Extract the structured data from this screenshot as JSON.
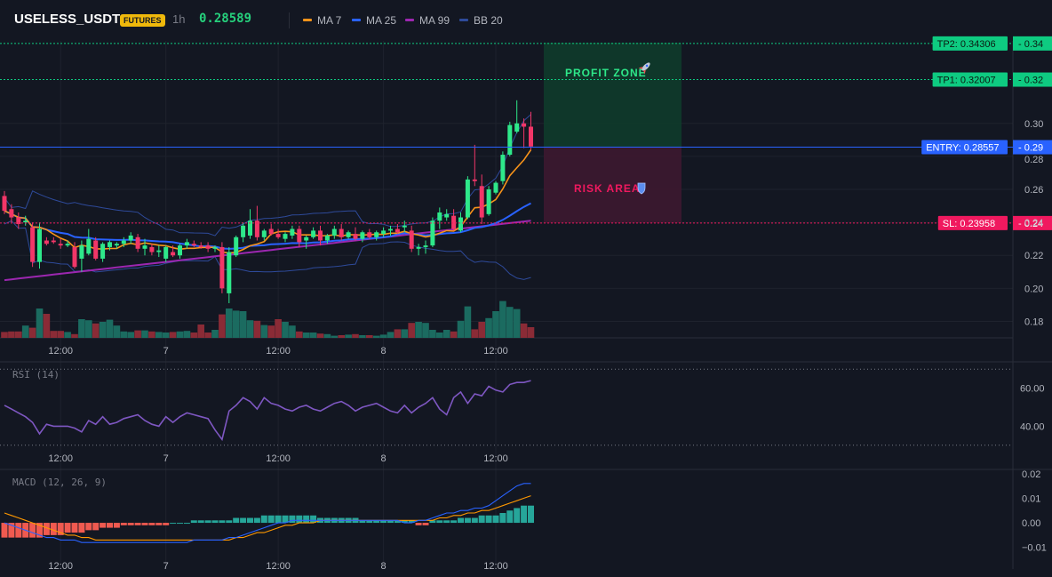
{
  "header": {
    "symbol": "USELESS_USDT",
    "badge": "FUTURES",
    "interval": "1h",
    "last_price": "0.28589",
    "legend": [
      {
        "label": "MA 7",
        "color": "#f7931a"
      },
      {
        "label": "MA 25",
        "color": "#2962ff"
      },
      {
        "label": "MA 99",
        "color": "#9c27b0"
      },
      {
        "label": "BB 20",
        "color": "#2e4a9a"
      }
    ]
  },
  "colors": {
    "up": "#26a69a",
    "down": "#ef5350",
    "up_bright": "#2ee88a",
    "down_bright": "#f23668",
    "tp": "#0ecb81",
    "entry": "#2962ff",
    "sl": "#f0195f"
  },
  "zones": {
    "profit_label": "PROFIT ZONE",
    "profit_icon": "rocket-icon",
    "risk_label": "RISK AREA",
    "risk_icon": "shield-icon"
  },
  "levels": [
    {
      "id": "tp2",
      "label": "TP2: 0.34306",
      "axis_label": "0.34",
      "price": 0.34306
    },
    {
      "id": "tp1",
      "label": "TP1: 0.32007",
      "axis_label": "0.32",
      "price": 0.32007
    },
    {
      "id": "entry",
      "label": "ENTRY: 0.28557",
      "axis_label": "0.29",
      "price": 0.28557
    },
    {
      "id": "sl",
      "label": "SL: 0.23958",
      "axis_label": "0.24",
      "price": 0.23958
    }
  ],
  "panes": {
    "rsi_label": "RSI (14)",
    "macd_label": "MACD (12, 26, 9)"
  },
  "chart_data": {
    "type": "candlestick",
    "price_axis": {
      "ticks": [
        0.18,
        0.2,
        0.22,
        0.24,
        0.26,
        0.28,
        0.3
      ],
      "tick_labels": [
        "0.18",
        "0.20",
        "0.22",
        "0.24",
        "0.26",
        "0.28",
        "0.30"
      ],
      "range": [
        0.17,
        0.35
      ]
    },
    "time_ticks": [
      {
        "label": "12:00",
        "index": 8
      },
      {
        "label": "7",
        "index": 23
      },
      {
        "label": "12:00",
        "index": 39
      },
      {
        "label": "8",
        "index": 54
      },
      {
        "label": "12:00",
        "index": 70
      }
    ],
    "candles": [
      {
        "o": 0.256,
        "h": 0.259,
        "l": 0.245,
        "c": 0.247
      },
      {
        "o": 0.248,
        "h": 0.251,
        "l": 0.24,
        "c": 0.243
      },
      {
        "o": 0.243,
        "h": 0.246,
        "l": 0.236,
        "c": 0.239
      },
      {
        "o": 0.24,
        "h": 0.244,
        "l": 0.238,
        "c": 0.241
      },
      {
        "o": 0.237,
        "h": 0.24,
        "l": 0.213,
        "c": 0.216
      },
      {
        "o": 0.216,
        "h": 0.24,
        "l": 0.212,
        "c": 0.236
      },
      {
        "o": 0.229,
        "h": 0.231,
        "l": 0.226,
        "c": 0.227
      },
      {
        "o": 0.229,
        "h": 0.231,
        "l": 0.227,
        "c": 0.228
      },
      {
        "o": 0.227,
        "h": 0.23,
        "l": 0.224,
        "c": 0.226
      },
      {
        "o": 0.226,
        "h": 0.229,
        "l": 0.225,
        "c": 0.227
      },
      {
        "o": 0.225,
        "h": 0.228,
        "l": 0.212,
        "c": 0.213
      },
      {
        "o": 0.218,
        "h": 0.229,
        "l": 0.21,
        "c": 0.226
      },
      {
        "o": 0.221,
        "h": 0.236,
        "l": 0.22,
        "c": 0.23
      },
      {
        "o": 0.229,
        "h": 0.231,
        "l": 0.217,
        "c": 0.218
      },
      {
        "o": 0.218,
        "h": 0.228,
        "l": 0.216,
        "c": 0.227
      },
      {
        "o": 0.225,
        "h": 0.229,
        "l": 0.223,
        "c": 0.228
      },
      {
        "o": 0.226,
        "h": 0.228,
        "l": 0.224,
        "c": 0.227
      },
      {
        "o": 0.227,
        "h": 0.231,
        "l": 0.225,
        "c": 0.229
      },
      {
        "o": 0.229,
        "h": 0.234,
        "l": 0.227,
        "c": 0.232
      },
      {
        "o": 0.231,
        "h": 0.233,
        "l": 0.222,
        "c": 0.224
      },
      {
        "o": 0.224,
        "h": 0.23,
        "l": 0.22,
        "c": 0.226
      },
      {
        "o": 0.225,
        "h": 0.227,
        "l": 0.22,
        "c": 0.222
      },
      {
        "o": 0.222,
        "h": 0.226,
        "l": 0.219,
        "c": 0.223
      },
      {
        "o": 0.218,
        "h": 0.226,
        "l": 0.216,
        "c": 0.225
      },
      {
        "o": 0.222,
        "h": 0.226,
        "l": 0.219,
        "c": 0.22
      },
      {
        "o": 0.22,
        "h": 0.227,
        "l": 0.218,
        "c": 0.226
      },
      {
        "o": 0.226,
        "h": 0.23,
        "l": 0.224,
        "c": 0.228
      },
      {
        "o": 0.227,
        "h": 0.229,
        "l": 0.225,
        "c": 0.226
      },
      {
        "o": 0.226,
        "h": 0.228,
        "l": 0.224,
        "c": 0.225
      },
      {
        "o": 0.226,
        "h": 0.228,
        "l": 0.222,
        "c": 0.224
      },
      {
        "o": 0.224,
        "h": 0.226,
        "l": 0.222,
        "c": 0.225
      },
      {
        "o": 0.225,
        "h": 0.228,
        "l": 0.197,
        "c": 0.2
      },
      {
        "o": 0.197,
        "h": 0.225,
        "l": 0.191,
        "c": 0.222
      },
      {
        "o": 0.22,
        "h": 0.232,
        "l": 0.219,
        "c": 0.231
      },
      {
        "o": 0.231,
        "h": 0.24,
        "l": 0.228,
        "c": 0.238
      },
      {
        "o": 0.232,
        "h": 0.248,
        "l": 0.23,
        "c": 0.241
      },
      {
        "o": 0.241,
        "h": 0.25,
        "l": 0.229,
        "c": 0.231
      },
      {
        "o": 0.231,
        "h": 0.236,
        "l": 0.229,
        "c": 0.235
      },
      {
        "o": 0.236,
        "h": 0.239,
        "l": 0.232,
        "c": 0.233
      },
      {
        "o": 0.233,
        "h": 0.236,
        "l": 0.23,
        "c": 0.231
      },
      {
        "o": 0.23,
        "h": 0.234,
        "l": 0.228,
        "c": 0.233
      },
      {
        "o": 0.232,
        "h": 0.238,
        "l": 0.23,
        "c": 0.236
      },
      {
        "o": 0.236,
        "h": 0.238,
        "l": 0.225,
        "c": 0.228
      },
      {
        "o": 0.229,
        "h": 0.232,
        "l": 0.224,
        "c": 0.231
      },
      {
        "o": 0.231,
        "h": 0.237,
        "l": 0.23,
        "c": 0.235
      },
      {
        "o": 0.235,
        "h": 0.238,
        "l": 0.226,
        "c": 0.229
      },
      {
        "o": 0.229,
        "h": 0.233,
        "l": 0.227,
        "c": 0.232
      },
      {
        "o": 0.232,
        "h": 0.238,
        "l": 0.23,
        "c": 0.236
      },
      {
        "o": 0.236,
        "h": 0.239,
        "l": 0.229,
        "c": 0.231
      },
      {
        "o": 0.231,
        "h": 0.235,
        "l": 0.23,
        "c": 0.234
      },
      {
        "o": 0.233,
        "h": 0.237,
        "l": 0.229,
        "c": 0.23
      },
      {
        "o": 0.23,
        "h": 0.235,
        "l": 0.228,
        "c": 0.234
      },
      {
        "o": 0.234,
        "h": 0.236,
        "l": 0.23,
        "c": 0.231
      },
      {
        "o": 0.231,
        "h": 0.235,
        "l": 0.229,
        "c": 0.234
      },
      {
        "o": 0.233,
        "h": 0.237,
        "l": 0.231,
        "c": 0.235
      },
      {
        "o": 0.235,
        "h": 0.238,
        "l": 0.232,
        "c": 0.236
      },
      {
        "o": 0.236,
        "h": 0.239,
        "l": 0.233,
        "c": 0.234
      },
      {
        "o": 0.237,
        "h": 0.241,
        "l": 0.234,
        "c": 0.238
      },
      {
        "o": 0.235,
        "h": 0.238,
        "l": 0.222,
        "c": 0.224
      },
      {
        "o": 0.224,
        "h": 0.227,
        "l": 0.22,
        "c": 0.225
      },
      {
        "o": 0.225,
        "h": 0.229,
        "l": 0.221,
        "c": 0.226
      },
      {
        "o": 0.226,
        "h": 0.243,
        "l": 0.225,
        "c": 0.241
      },
      {
        "o": 0.241,
        "h": 0.249,
        "l": 0.236,
        "c": 0.246
      },
      {
        "o": 0.243,
        "h": 0.248,
        "l": 0.241,
        "c": 0.245
      },
      {
        "o": 0.244,
        "h": 0.248,
        "l": 0.235,
        "c": 0.236
      },
      {
        "o": 0.235,
        "h": 0.246,
        "l": 0.234,
        "c": 0.243
      },
      {
        "o": 0.243,
        "h": 0.268,
        "l": 0.242,
        "c": 0.266
      },
      {
        "o": 0.266,
        "h": 0.287,
        "l": 0.262,
        "c": 0.265
      },
      {
        "o": 0.262,
        "h": 0.269,
        "l": 0.239,
        "c": 0.243
      },
      {
        "o": 0.245,
        "h": 0.262,
        "l": 0.244,
        "c": 0.26
      },
      {
        "o": 0.258,
        "h": 0.265,
        "l": 0.257,
        "c": 0.264
      },
      {
        "o": 0.265,
        "h": 0.283,
        "l": 0.263,
        "c": 0.281
      },
      {
        "o": 0.281,
        "h": 0.301,
        "l": 0.28,
        "c": 0.299
      },
      {
        "o": 0.295,
        "h": 0.314,
        "l": 0.294,
        "c": 0.3
      },
      {
        "o": 0.3,
        "h": 0.303,
        "l": 0.285,
        "c": 0.298
      },
      {
        "o": 0.298,
        "h": 0.307,
        "l": 0.284,
        "c": 0.286
      }
    ],
    "volume": [
      0.11,
      0.12,
      0.12,
      0.23,
      0.19,
      0.55,
      0.45,
      0.13,
      0.13,
      0.11,
      0.07,
      0.35,
      0.33,
      0.27,
      0.3,
      0.34,
      0.23,
      0.12,
      0.11,
      0.14,
      0.14,
      0.12,
      0.11,
      0.1,
      0.11,
      0.12,
      0.13,
      0.1,
      0.25,
      0.1,
      0.15,
      0.44,
      0.55,
      0.51,
      0.5,
      0.33,
      0.32,
      0.24,
      0.23,
      0.35,
      0.3,
      0.23,
      0.12,
      0.1,
      0.1,
      0.08,
      0.07,
      0.04,
      0.05,
      0.06,
      0.07,
      0.05,
      0.05,
      0.04,
      0.06,
      0.11,
      0.16,
      0.16,
      0.28,
      0.3,
      0.28,
      0.15,
      0.1,
      0.15,
      0.12,
      0.32,
      0.59,
      0.16,
      0.3,
      0.37,
      0.5,
      0.69,
      0.58,
      0.54,
      0.27,
      0.2
    ],
    "rsi": {
      "ticks": [
        40,
        60
      ],
      "tick_labels": [
        "40.00",
        "60.00"
      ],
      "bands": [
        30,
        70
      ],
      "range": [
        28,
        72
      ],
      "values": [
        51,
        49,
        47,
        45,
        42,
        36,
        41,
        40,
        40,
        40,
        39,
        37,
        43,
        41,
        45,
        41,
        42,
        44,
        45,
        46,
        43,
        41,
        40,
        45,
        42,
        45,
        47,
        46,
        45,
        44,
        38,
        33,
        48,
        51,
        55,
        53,
        49,
        55,
        52,
        51,
        49,
        48,
        50,
        51,
        49,
        48,
        50,
        52,
        53,
        51,
        48,
        50,
        51,
        52,
        50,
        48,
        47,
        51,
        47,
        50,
        52,
        55,
        49,
        46,
        55,
        58,
        52,
        57,
        56,
        61,
        59,
        58,
        62,
        63,
        63,
        64
      ]
    },
    "macd": {
      "ticks": [
        -0.01,
        0,
        0.01,
        0.02
      ],
      "tick_labels": [
        "−0.01",
        "0.00",
        "0.01",
        "0.02"
      ],
      "range": [
        -0.013,
        0.021
      ],
      "macd": [
        0.0,
        -0.001,
        -0.002,
        -0.003,
        -0.004,
        -0.005,
        -0.006,
        -0.006,
        -0.007,
        -0.007,
        -0.007,
        -0.008,
        -0.008,
        -0.008,
        -0.008,
        -0.008,
        -0.008,
        -0.008,
        -0.008,
        -0.008,
        -0.008,
        -0.008,
        -0.008,
        -0.008,
        -0.008,
        -0.008,
        -0.008,
        -0.007,
        -0.007,
        -0.007,
        -0.007,
        -0.007,
        -0.006,
        -0.006,
        -0.005,
        -0.004,
        -0.003,
        -0.002,
        -0.001,
        0.0,
        0.0,
        0.001,
        0.001,
        0.001,
        0.001,
        0.001,
        0.001,
        0.001,
        0.001,
        0.001,
        0.001,
        0.001,
        0.001,
        0.001,
        0.001,
        0.001,
        0.001,
        0.0,
        0.0,
        0.001,
        0.001,
        0.002,
        0.003,
        0.004,
        0.004,
        0.005,
        0.005,
        0.006,
        0.006,
        0.007,
        0.009,
        0.011,
        0.013,
        0.015,
        0.016,
        0.016
      ],
      "signal": [
        0.004,
        0.003,
        0.002,
        0.001,
        0.0,
        -0.001,
        -0.002,
        -0.003,
        -0.004,
        -0.005,
        -0.005,
        -0.006,
        -0.006,
        -0.007,
        -0.007,
        -0.007,
        -0.007,
        -0.007,
        -0.007,
        -0.007,
        -0.007,
        -0.007,
        -0.007,
        -0.007,
        -0.007,
        -0.007,
        -0.007,
        -0.007,
        -0.007,
        -0.007,
        -0.007,
        -0.007,
        -0.007,
        -0.006,
        -0.006,
        -0.005,
        -0.004,
        -0.004,
        -0.003,
        -0.002,
        -0.001,
        -0.001,
        0.0,
        0.0,
        0.0,
        0.001,
        0.001,
        0.001,
        0.001,
        0.001,
        0.001,
        0.001,
        0.001,
        0.001,
        0.001,
        0.001,
        0.001,
        0.001,
        0.001,
        0.001,
        0.001,
        0.001,
        0.002,
        0.002,
        0.003,
        0.003,
        0.004,
        0.004,
        0.005,
        0.005,
        0.006,
        0.007,
        0.008,
        0.009,
        0.01,
        0.011
      ],
      "hist": [
        -0.006,
        -0.006,
        -0.006,
        -0.006,
        -0.006,
        -0.006,
        -0.005,
        -0.005,
        -0.005,
        -0.004,
        -0.004,
        -0.004,
        -0.003,
        -0.003,
        -0.002,
        -0.002,
        -0.002,
        -0.001,
        -0.001,
        -0.001,
        -0.001,
        -0.001,
        -0.001,
        -0.001,
        0.0,
        0.0,
        0.0,
        0.001,
        0.001,
        0.001,
        0.001,
        0.001,
        0.001,
        0.002,
        0.002,
        0.002,
        0.002,
        0.003,
        0.003,
        0.003,
        0.003,
        0.003,
        0.003,
        0.003,
        0.003,
        0.002,
        0.002,
        0.002,
        0.002,
        0.002,
        0.002,
        0.001,
        0.001,
        0.001,
        0.001,
        0.001,
        0.001,
        0.001,
        0.001,
        -0.001,
        -0.001,
        0.001,
        0.001,
        0.001,
        0.001,
        0.002,
        0.002,
        0.002,
        0.003,
        0.003,
        0.003,
        0.004,
        0.005,
        0.006,
        0.007,
        0.007
      ]
    }
  }
}
